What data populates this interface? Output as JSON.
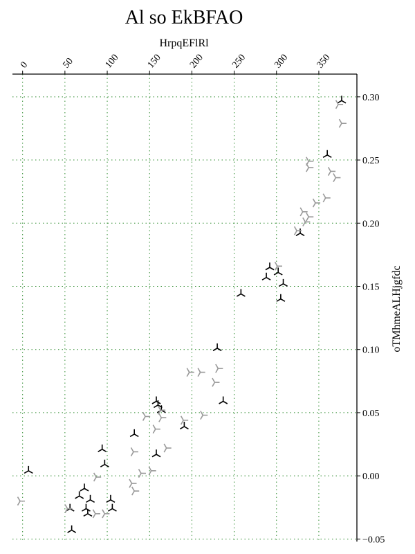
{
  "chart_data": {
    "type": "scatter",
    "title": "Al so EkBFAO",
    "xlabel": "HrpqEFlRl",
    "ylabel": "oTMhmeALHjgfdc",
    "xlim": [
      -12,
      395
    ],
    "ylim": [
      -0.052,
      0.318
    ],
    "xticks": [
      0,
      50,
      100,
      150,
      200,
      250,
      300,
      350
    ],
    "yticks": [
      -0.05,
      0.0,
      0.05,
      0.1,
      0.15,
      0.2,
      0.25,
      0.3
    ],
    "ytick_labels": [
      "−0.05",
      "0.00",
      "0.05",
      "0.10",
      "0.15",
      "0.20",
      "0.25",
      "0.30"
    ],
    "grid": true,
    "colors": {
      "series_a": "#000000",
      "series_b": "#999999",
      "grid": "#2e8b2e"
    },
    "series": [
      {
        "marker": "tri-down",
        "color": "#000000",
        "points": [
          [
            377,
            0.297
          ],
          [
            360,
            0.254
          ],
          [
            328,
            0.192
          ],
          [
            292,
            0.165
          ],
          [
            302,
            0.161
          ],
          [
            288,
            0.157
          ],
          [
            308,
            0.152
          ],
          [
            258,
            0.144
          ],
          [
            305,
            0.14
          ],
          [
            230,
            0.101
          ],
          [
            237,
            0.059
          ],
          [
            158,
            0.059
          ],
          [
            160,
            0.056
          ],
          [
            164,
            0.052
          ],
          [
            191,
            0.039
          ],
          [
            132,
            0.033
          ],
          [
            94,
            0.021
          ],
          [
            158,
            0.017
          ],
          [
            97,
            0.009
          ],
          [
            7,
            0.004
          ],
          [
            73,
            -0.01
          ],
          [
            67,
            -0.016
          ],
          [
            80,
            -0.019
          ],
          [
            104,
            -0.019
          ],
          [
            56,
            -0.026
          ],
          [
            75,
            -0.026
          ],
          [
            106,
            -0.026
          ],
          [
            77,
            -0.03
          ],
          [
            58,
            -0.043
          ]
        ]
      },
      {
        "marker": "tri-right",
        "color": "#999999",
        "points": [
          [
            373,
            0.294
          ],
          [
            377,
            0.279
          ],
          [
            338,
            0.249
          ],
          [
            338,
            0.244
          ],
          [
            364,
            0.241
          ],
          [
            370,
            0.236
          ],
          [
            358,
            0.22
          ],
          [
            346,
            0.216
          ],
          [
            331,
            0.209
          ],
          [
            338,
            0.205
          ],
          [
            334,
            0.201
          ],
          [
            324,
            0.194
          ],
          [
            301,
            0.166
          ],
          [
            231,
            0.085
          ],
          [
            210,
            0.082
          ],
          [
            197,
            0.082
          ],
          [
            227,
            0.074
          ],
          [
            163,
            0.052
          ],
          [
            164,
            0.046
          ],
          [
            145,
            0.047
          ],
          [
            213,
            0.048
          ],
          [
            190,
            0.044
          ],
          [
            157,
            0.037
          ],
          [
            170,
            0.022
          ],
          [
            131,
            0.019
          ],
          [
            140,
            0.002
          ],
          [
            152,
            0.004
          ],
          [
            87,
            -0.001
          ],
          [
            129,
            -0.006
          ],
          [
            132,
            -0.012
          ],
          [
            -3,
            -0.02
          ],
          [
            53,
            -0.026
          ],
          [
            86,
            -0.03
          ],
          [
            97,
            -0.03
          ]
        ]
      }
    ]
  }
}
